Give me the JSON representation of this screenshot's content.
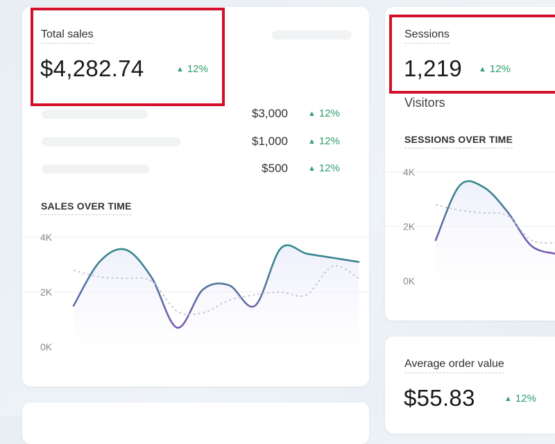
{
  "colors": {
    "accent_line_start": "#2f8a8a",
    "accent_line_end": "#7b5bb5",
    "positive": "#2e9e6e",
    "highlight": "#d3102b"
  },
  "total_sales": {
    "label": "Total sales",
    "value": "$4,282.74",
    "delta": "12%",
    "delta_icon": "triangle-up-icon",
    "rows": [
      {
        "value": "$3,000",
        "delta": "12%"
      },
      {
        "value": "$1,000",
        "delta": "12%"
      },
      {
        "value": "$500",
        "delta": "12%"
      }
    ]
  },
  "sessions": {
    "label": "Sessions",
    "value": "1,219",
    "delta": "12%",
    "sublabel": "Visitors"
  },
  "aov": {
    "label": "Average order value",
    "value": "$55.83",
    "delta": "12%"
  },
  "chart_data": [
    {
      "type": "line",
      "title": "SALES OVER TIME",
      "xlabel": "",
      "ylabel": "",
      "ylim": [
        0,
        4000
      ],
      "yticks": [
        "0K",
        "2K",
        "4K"
      ],
      "grid": true,
      "series": [
        {
          "style": "solid",
          "values": [
            1500,
            3100,
            3550,
            2550,
            700,
            2100,
            2250,
            1500,
            3600,
            3400,
            3250,
            3100
          ]
        },
        {
          "style": "dashed",
          "values": [
            2800,
            2550,
            2500,
            2400,
            1300,
            1250,
            1700,
            1900,
            2000,
            1900,
            2950,
            2500
          ]
        }
      ]
    },
    {
      "type": "line",
      "title": "SESSIONS OVER TIME",
      "xlabel": "",
      "ylabel": "",
      "ylim": [
        0,
        4000
      ],
      "yticks": [
        "0K",
        "2K",
        "4K"
      ],
      "grid": true,
      "series": [
        {
          "style": "solid",
          "values": [
            1500,
            3500,
            3450,
            2550,
            1300,
            1000
          ]
        },
        {
          "style": "dashed",
          "values": [
            2800,
            2600,
            2500,
            2400,
            1500,
            1400
          ]
        }
      ]
    }
  ]
}
